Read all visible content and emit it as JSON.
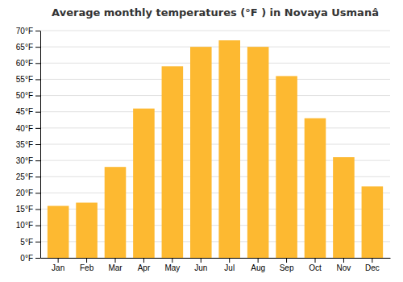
{
  "chart_data": {
    "type": "bar",
    "title": "Average monthly temperatures (°F ) in Novaya Usmanâ",
    "categories": [
      "Jan",
      "Feb",
      "Mar",
      "Apr",
      "May",
      "Jun",
      "Jul",
      "Aug",
      "Sep",
      "Oct",
      "Nov",
      "Dec"
    ],
    "values": [
      16,
      17,
      28,
      46,
      59,
      65,
      67,
      65,
      56,
      43,
      31,
      22
    ],
    "color": "#FDB931",
    "ylim": [
      0,
      70
    ],
    "yticks": [
      {
        "value": 0,
        "label": "0°F"
      },
      {
        "value": 5,
        "label": "5°F"
      },
      {
        "value": 10,
        "label": "10°F"
      },
      {
        "value": 15,
        "label": "15°F"
      },
      {
        "value": 20,
        "label": "20°F"
      },
      {
        "value": 25,
        "label": "25°F"
      },
      {
        "value": 30,
        "label": "30°F"
      },
      {
        "value": 35,
        "label": "35°F"
      },
      {
        "value": 40,
        "label": "40°F"
      },
      {
        "value": 45,
        "label": "45°F"
      },
      {
        "value": 50,
        "label": "50°F"
      },
      {
        "value": 55,
        "label": "55°F"
      },
      {
        "value": 60,
        "label": "60°F"
      },
      {
        "value": 65,
        "label": "65°F"
      },
      {
        "value": 70,
        "label": "70°F"
      }
    ],
    "grid": true
  }
}
